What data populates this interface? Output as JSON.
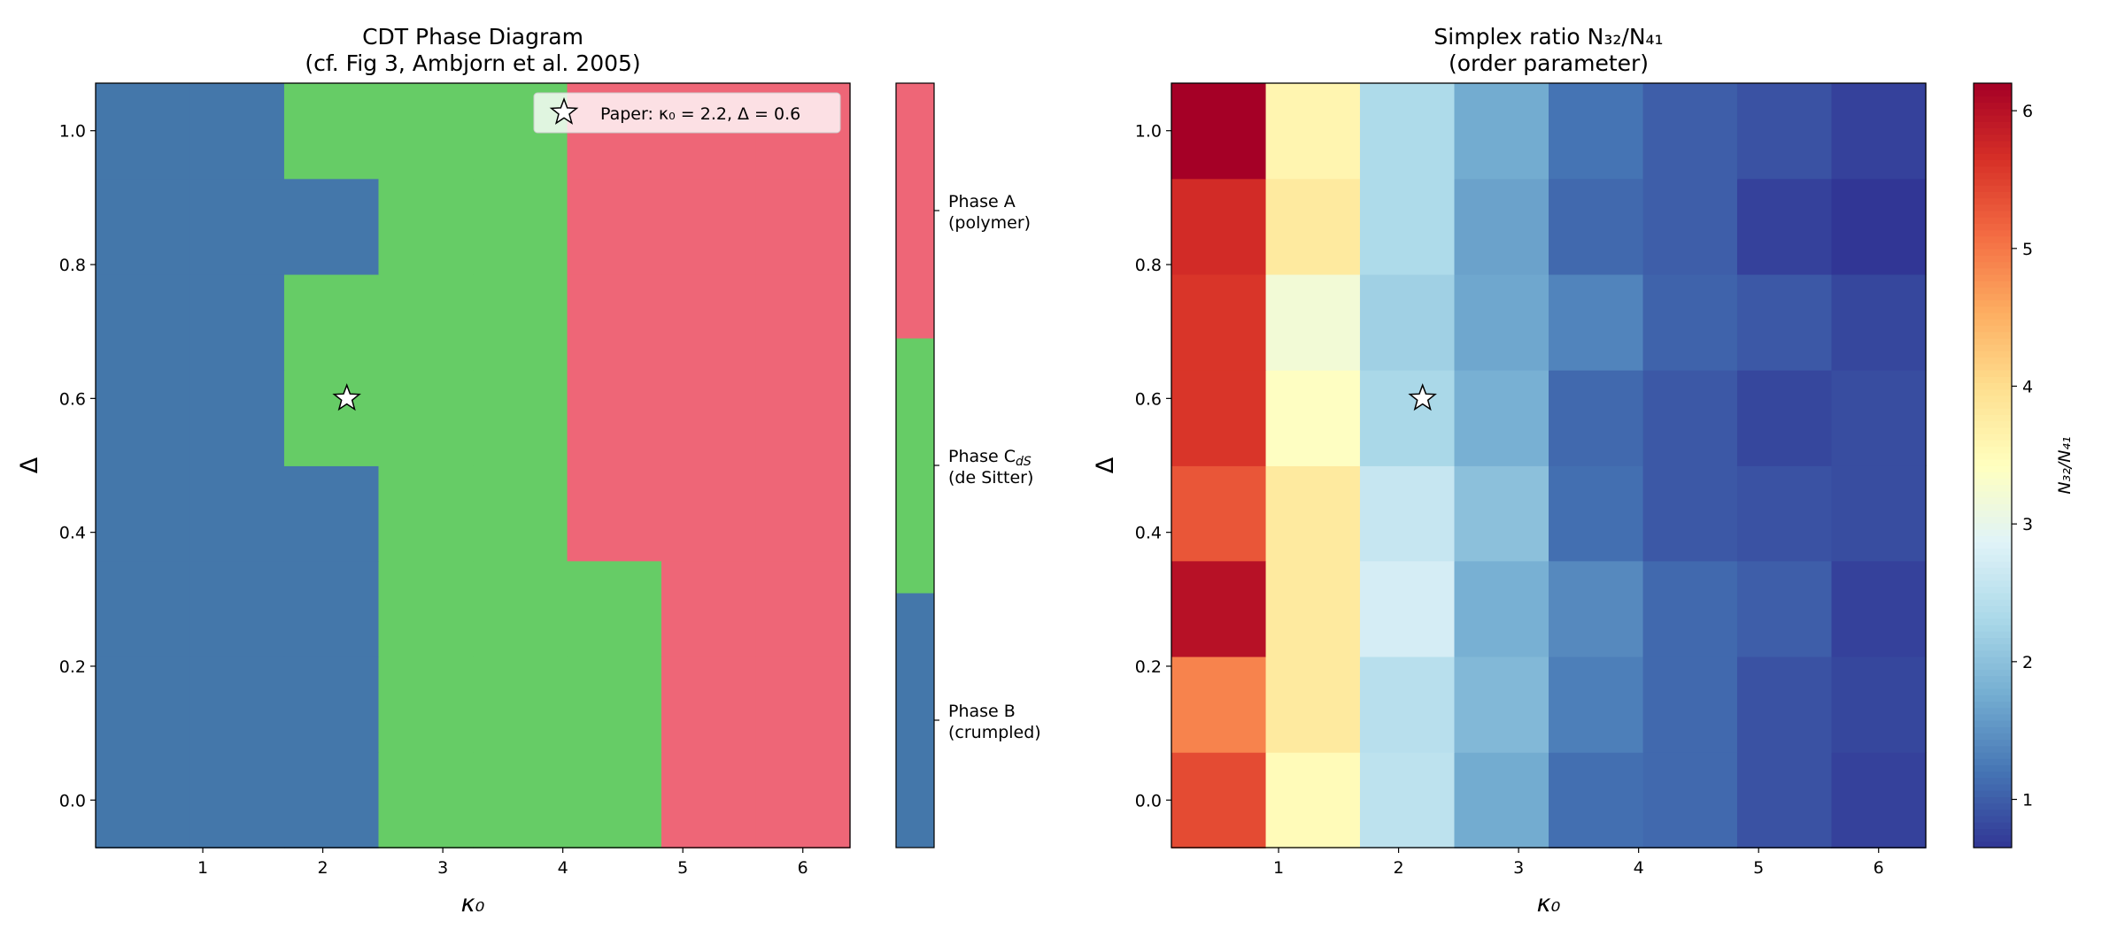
{
  "chart_data": [
    {
      "type": "heatmap",
      "title": [
        "CDT Phase Diagram",
        "(cf. Fig 3, Ambjorn et al. 2005)"
      ],
      "xlabel": "κ₀",
      "ylabel": "Δ",
      "x": [
        0.5,
        1.286,
        2.071,
        2.857,
        3.643,
        4.429,
        5.214,
        6.0
      ],
      "y": [
        0.0,
        0.143,
        0.286,
        0.429,
        0.571,
        0.714,
        0.857,
        1.0
      ],
      "xlim": [
        0.107,
        6.393
      ],
      "ylim": [
        -0.071,
        1.071
      ],
      "xticks": [
        "1",
        "2",
        "3",
        "4",
        "5",
        "6"
      ],
      "yticks": [
        "0.0",
        "0.2",
        "0.4",
        "0.6",
        "0.8",
        "1.0"
      ],
      "phase_codes_by_row_from_y0": [
        [
          0,
          0,
          0,
          1,
          1,
          1,
          2,
          2
        ],
        [
          0,
          0,
          0,
          1,
          1,
          1,
          2,
          2
        ],
        [
          0,
          0,
          0,
          1,
          1,
          1,
          2,
          2
        ],
        [
          0,
          0,
          0,
          1,
          1,
          2,
          2,
          2
        ],
        [
          0,
          0,
          1,
          1,
          1,
          2,
          2,
          2
        ],
        [
          0,
          0,
          1,
          1,
          1,
          2,
          2,
          2
        ],
        [
          0,
          0,
          0,
          1,
          1,
          2,
          2,
          2
        ],
        [
          0,
          0,
          1,
          1,
          1,
          2,
          2,
          2
        ]
      ],
      "phases": [
        {
          "code": 0,
          "name": "Phase B",
          "desc": "(crumpled)",
          "color": "#4477aa"
        },
        {
          "code": 1,
          "name": "Phase C",
          "sub": "dS",
          "desc": "(de Sitter)",
          "color": "#66cc66"
        },
        {
          "code": 2,
          "name": "Phase A",
          "desc": "(polymer)",
          "color": "#ee6677"
        }
      ],
      "marker": {
        "x": 2.2,
        "y": 0.6,
        "shape": "star"
      },
      "legend": {
        "label": "Paper: κ₀ = 2.2, Δ = 0.6",
        "placement": "top-right"
      }
    },
    {
      "type": "heatmap",
      "title": [
        "Simplex ratio N₃₂/N₄₁",
        "(order parameter)"
      ],
      "xlabel": "κ₀",
      "ylabel": "Δ",
      "x": [
        0.5,
        1.286,
        2.071,
        2.857,
        3.643,
        4.429,
        5.214,
        6.0
      ],
      "y": [
        0.0,
        0.143,
        0.286,
        0.429,
        0.571,
        0.714,
        0.857,
        1.0
      ],
      "xlim": [
        0.107,
        6.393
      ],
      "ylim": [
        -0.071,
        1.071
      ],
      "xticks": [
        "1",
        "2",
        "3",
        "4",
        "5",
        "6"
      ],
      "yticks": [
        "0.0",
        "0.2",
        "0.4",
        "0.6",
        "0.8",
        "1.0"
      ],
      "values_by_row_from_y0": [
        [
          5.4,
          3.5,
          2.5,
          1.75,
          1.15,
          1.1,
          0.9,
          0.75
        ],
        [
          4.9,
          3.8,
          2.45,
          1.9,
          1.3,
          1.1,
          0.9,
          0.8
        ],
        [
          6.0,
          3.8,
          2.75,
          1.8,
          1.4,
          1.1,
          1.0,
          0.75
        ],
        [
          5.3,
          3.8,
          2.6,
          2.0,
          1.15,
          0.95,
          0.9,
          0.85
        ],
        [
          5.6,
          3.4,
          2.3,
          1.8,
          1.1,
          0.95,
          0.8,
          0.85
        ],
        [
          5.6,
          3.2,
          2.2,
          1.7,
          1.35,
          1.05,
          0.95,
          0.8
        ],
        [
          5.7,
          3.8,
          2.35,
          1.65,
          1.1,
          1.0,
          0.75,
          0.65
        ],
        [
          6.2,
          3.6,
          2.35,
          1.75,
          1.2,
          1.0,
          0.9,
          0.75
        ]
      ],
      "colormap": "RdYlBu_r",
      "colormap_stops": [
        "#313695",
        "#4575b4",
        "#74add1",
        "#abd9e9",
        "#e0f3f8",
        "#ffffbf",
        "#fee090",
        "#fdae61",
        "#f46d43",
        "#d73027",
        "#a50026"
      ],
      "vlim": [
        0.65,
        6.2
      ],
      "colorbar_ticks": [
        "1",
        "2",
        "3",
        "4",
        "5",
        "6"
      ],
      "colorbar_label": "N₃₂/N₄₁",
      "marker": {
        "x": 2.2,
        "y": 0.6,
        "shape": "star"
      }
    }
  ]
}
